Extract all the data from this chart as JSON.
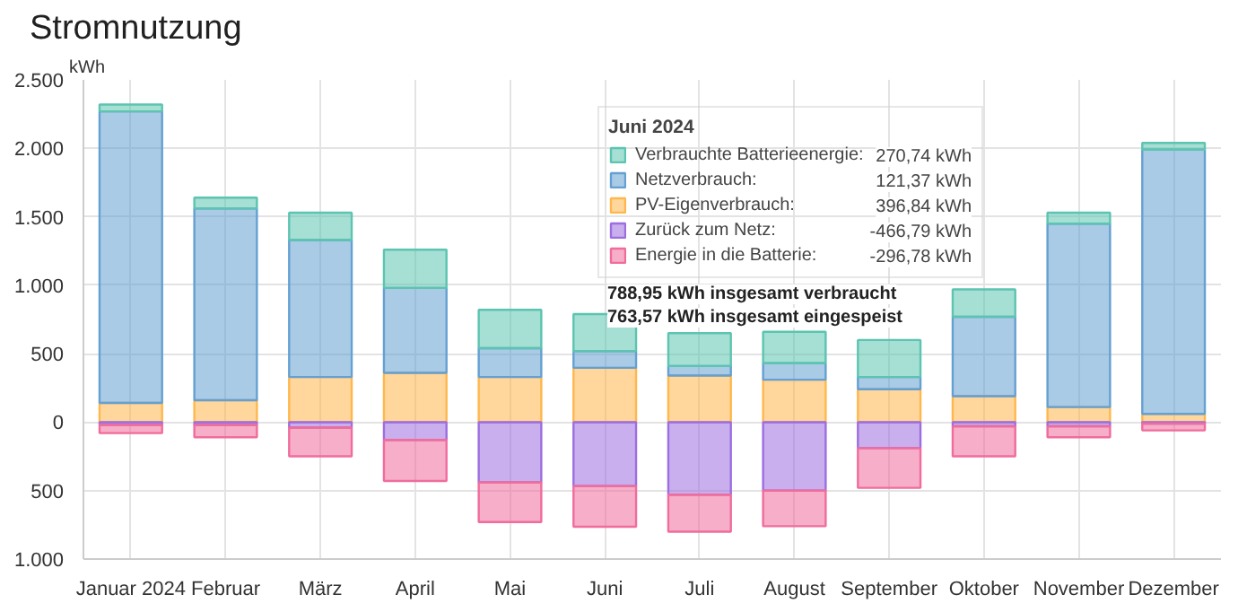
{
  "chart_data": {
    "type": "bar",
    "title": "Stromnutzung",
    "ylabel": "kWh",
    "stacked": true,
    "grid": true,
    "legend": "top",
    "legend_title": "Juni 2024",
    "categories": [
      "Januar 2024",
      "Februar",
      "März",
      "April",
      "Mai",
      "Juni",
      "Juli",
      "August",
      "September",
      "Oktober",
      "November",
      "Dezember"
    ],
    "ylim": [
      -1000,
      2500
    ],
    "yticks": [
      {
        "value": -1000,
        "label": "1.000"
      },
      {
        "value": -500,
        "label": "500"
      },
      0,
      {
        "value": 500,
        "label": "500"
      },
      {
        "value": 1000,
        "label": "1.000"
      },
      {
        "value": 1500,
        "label": "1.500"
      },
      {
        "value": 2000,
        "label": "2.000"
      },
      {
        "value": 2500,
        "label": "2.500"
      }
    ],
    "series": [
      {
        "name": "PV-Eigenverbrauch:",
        "color": "#ffb74d",
        "values": [
          140,
          160,
          330,
          360,
          330,
          396.84,
          340,
          310,
          240,
          190,
          110,
          60
        ]
      },
      {
        "name": "Netzverbrauch:",
        "color": "#64a0d2",
        "values": [
          2130,
          1400,
          1000,
          620,
          210,
          121.37,
          70,
          120,
          90,
          580,
          1340,
          1930
        ]
      },
      {
        "name": "Verbrauchte Batterieenergie:",
        "color": "#5cc4b0",
        "values": [
          50,
          80,
          200,
          280,
          280,
          270.74,
          240,
          230,
          270,
          200,
          80,
          50
        ]
      },
      {
        "name": "Zurück zum Netz:",
        "color": "#9c6ee0",
        "values": [
          -20,
          -20,
          -40,
          -130,
          -440,
          -466.79,
          -530,
          -500,
          -190,
          -30,
          -30,
          -10
        ]
      },
      {
        "name": "Energie in die Batterie:",
        "color": "#f06c9c",
        "values": [
          -60,
          -90,
          -210,
          -300,
          -290,
          -296.78,
          -270,
          -260,
          -290,
          -220,
          -80,
          -50
        ]
      }
    ],
    "annotations": [
      "270,74 kWh",
      "121,37 kWh",
      "396,84 kWh",
      "-466,79 kWh",
      "-296,78 kWh",
      "788,95 kWh insgesamt verbraucht",
      "763,57 kWh insgesamt eingespeist"
    ]
  }
}
